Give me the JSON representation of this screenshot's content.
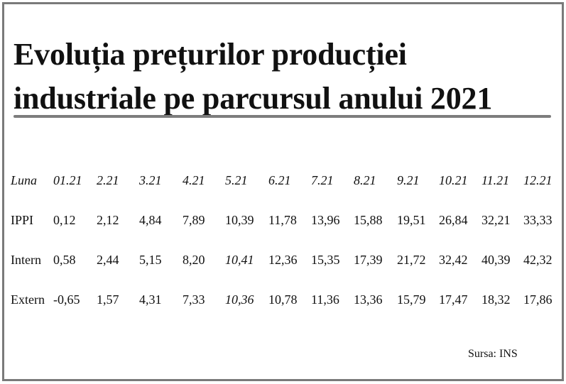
{
  "title": "Evoluția prețurilor producției industriale pe parcursul anului 2021",
  "table": {
    "header": {
      "label": "Luna",
      "months": [
        "01.21",
        "2.21",
        "3.21",
        "4.21",
        "5.21",
        "6.21",
        "7.21",
        "8.21",
        "9.21",
        "10.21",
        "11.21",
        "12.21"
      ]
    },
    "rows": [
      {
        "label": "IPPI",
        "values": [
          "0,12",
          "2,12",
          "4,84",
          "7,89",
          "10,39",
          "11,78",
          "13,96",
          "15,88",
          "19,51",
          "26,84",
          "32,21",
          "33,33"
        ]
      },
      {
        "label": "Intern",
        "values": [
          "0,58",
          "2,44",
          "5,15",
          "8,20",
          "10,41",
          "12,36",
          "15,35",
          "17,39",
          "21,72",
          "32,42",
          "40,39",
          "42,32"
        ]
      },
      {
        "label": "Extern",
        "values": [
          "-0,65",
          "1,57",
          "4,31",
          "7,33",
          "10,36",
          "10,78",
          "11,36",
          "13,36",
          "15,79",
          "17,47",
          "18,32",
          "17,86"
        ]
      }
    ]
  },
  "source": "Sursa: INS"
}
